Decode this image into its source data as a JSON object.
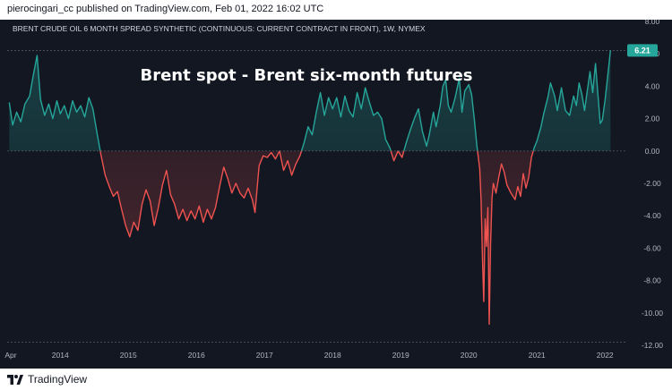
{
  "header": {
    "published_text": "pierocingari_cc published on TradingView.com, Feb 01, 2022 16:02 UTC"
  },
  "footer": {
    "brand_icon": "tradingview-logo-icon",
    "brand_label": "TradingView"
  },
  "colors": {
    "background": "#131722",
    "positive_line": "#26a69a",
    "negative_line": "#ef5350",
    "text": "#b2b5be",
    "price_badge": "#26a69a"
  },
  "chart_data": {
    "type": "line",
    "symbol_title": "BRENT CRUDE OIL 6 MONTH SPREAD SYNTHETIC (CONTINUOUS: CURRENT CONTRACT IN FRONT), 1W, NYMEX",
    "annotation": "Brent spot - Brent six-month futures",
    "last_value_label": "6.21",
    "baseline": 0,
    "ylim": [
      -12,
      8
    ],
    "y_ticks": [
      "8.00",
      "6.00",
      "4.00",
      "2.00",
      "0.00",
      "-2.00",
      "-4.00",
      "-6.00",
      "-8.00",
      "-10.00",
      "-12.00"
    ],
    "x_ticks": [
      {
        "label": "Apr",
        "t": 2013.25
      },
      {
        "label": "2014",
        "t": 2014.0
      },
      {
        "label": "2015",
        "t": 2015.0
      },
      {
        "label": "2016",
        "t": 2016.0
      },
      {
        "label": "2017",
        "t": 2017.0
      },
      {
        "label": "2018",
        "t": 2018.0
      },
      {
        "label": "2019",
        "t": 2019.0
      },
      {
        "label": "2020",
        "t": 2020.0
      },
      {
        "label": "2021",
        "t": 2021.0
      },
      {
        "label": "2022",
        "t": 2022.0
      }
    ],
    "x_range": [
      2013.22,
      2022.3
    ],
    "series": [
      {
        "values": [
          [
            2013.25,
            3.0
          ],
          [
            2013.3,
            1.6
          ],
          [
            2013.36,
            2.4
          ],
          [
            2013.42,
            1.8
          ],
          [
            2013.48,
            2.9
          ],
          [
            2013.55,
            3.4
          ],
          [
            2013.6,
            4.6
          ],
          [
            2013.66,
            5.9
          ],
          [
            2013.71,
            3.2
          ],
          [
            2013.77,
            2.2
          ],
          [
            2013.83,
            2.9
          ],
          [
            2013.89,
            2.0
          ],
          [
            2013.95,
            3.1
          ],
          [
            2014.0,
            2.3
          ],
          [
            2014.06,
            2.8
          ],
          [
            2014.12,
            2.0
          ],
          [
            2014.18,
            3.1
          ],
          [
            2014.24,
            2.4
          ],
          [
            2014.3,
            2.8
          ],
          [
            2014.36,
            2.1
          ],
          [
            2014.42,
            3.3
          ],
          [
            2014.48,
            2.6
          ],
          [
            2014.54,
            1.1
          ],
          [
            2014.6,
            -0.3
          ],
          [
            2014.66,
            -1.5
          ],
          [
            2014.72,
            -2.2
          ],
          [
            2014.78,
            -2.8
          ],
          [
            2014.84,
            -2.5
          ],
          [
            2014.9,
            -3.6
          ],
          [
            2014.96,
            -4.6
          ],
          [
            2015.02,
            -5.3
          ],
          [
            2015.08,
            -4.4
          ],
          [
            2015.14,
            -4.9
          ],
          [
            2015.2,
            -3.3
          ],
          [
            2015.26,
            -2.4
          ],
          [
            2015.32,
            -3.1
          ],
          [
            2015.38,
            -4.6
          ],
          [
            2015.44,
            -3.5
          ],
          [
            2015.5,
            -2.1
          ],
          [
            2015.56,
            -1.2
          ],
          [
            2015.62,
            -2.7
          ],
          [
            2015.68,
            -3.3
          ],
          [
            2015.74,
            -4.2
          ],
          [
            2015.8,
            -3.6
          ],
          [
            2015.86,
            -4.3
          ],
          [
            2015.92,
            -3.7
          ],
          [
            2015.98,
            -4.2
          ],
          [
            2016.04,
            -3.4
          ],
          [
            2016.1,
            -4.4
          ],
          [
            2016.16,
            -3.6
          ],
          [
            2016.22,
            -4.2
          ],
          [
            2016.28,
            -3.5
          ],
          [
            2016.34,
            -2.2
          ],
          [
            2016.4,
            -1.0
          ],
          [
            2016.46,
            -1.7
          ],
          [
            2016.52,
            -2.6
          ],
          [
            2016.58,
            -2.0
          ],
          [
            2016.64,
            -2.6
          ],
          [
            2016.7,
            -2.9
          ],
          [
            2016.76,
            -2.3
          ],
          [
            2016.82,
            -3.0
          ],
          [
            2016.86,
            -3.8
          ],
          [
            2016.92,
            -0.9
          ],
          [
            2016.98,
            -0.3
          ],
          [
            2017.04,
            -0.4
          ],
          [
            2017.1,
            -0.1
          ],
          [
            2017.16,
            -0.5
          ],
          [
            2017.22,
            0.0
          ],
          [
            2017.28,
            -1.2
          ],
          [
            2017.34,
            -0.6
          ],
          [
            2017.4,
            -1.5
          ],
          [
            2017.46,
            -0.8
          ],
          [
            2017.52,
            -0.3
          ],
          [
            2017.58,
            0.5
          ],
          [
            2017.64,
            1.5
          ],
          [
            2017.7,
            1.0
          ],
          [
            2017.76,
            2.4
          ],
          [
            2017.82,
            3.6
          ],
          [
            2017.88,
            2.2
          ],
          [
            2017.94,
            3.3
          ],
          [
            2018.0,
            2.6
          ],
          [
            2018.06,
            3.3
          ],
          [
            2018.12,
            2.1
          ],
          [
            2018.18,
            3.4
          ],
          [
            2018.24,
            2.5
          ],
          [
            2018.3,
            2.1
          ],
          [
            2018.36,
            3.6
          ],
          [
            2018.42,
            2.6
          ],
          [
            2018.48,
            3.9
          ],
          [
            2018.54,
            3.0
          ],
          [
            2018.6,
            2.2
          ],
          [
            2018.66,
            2.4
          ],
          [
            2018.72,
            2.0
          ],
          [
            2018.78,
            0.7
          ],
          [
            2018.84,
            0.2
          ],
          [
            2018.9,
            -0.6
          ],
          [
            2018.96,
            0.0
          ],
          [
            2019.02,
            -0.4
          ],
          [
            2019.08,
            0.5
          ],
          [
            2019.14,
            1.3
          ],
          [
            2019.2,
            2.0
          ],
          [
            2019.26,
            2.6
          ],
          [
            2019.32,
            1.2
          ],
          [
            2019.38,
            0.3
          ],
          [
            2019.42,
            1.0
          ],
          [
            2019.48,
            2.4
          ],
          [
            2019.52,
            1.5
          ],
          [
            2019.58,
            2.8
          ],
          [
            2019.62,
            4.0
          ],
          [
            2019.66,
            4.4
          ],
          [
            2019.7,
            2.8
          ],
          [
            2019.74,
            2.4
          ],
          [
            2019.8,
            3.3
          ],
          [
            2019.86,
            4.5
          ],
          [
            2019.9,
            2.4
          ],
          [
            2019.94,
            3.7
          ],
          [
            2020.0,
            4.1
          ],
          [
            2020.04,
            3.5
          ],
          [
            2020.08,
            2.0
          ],
          [
            2020.12,
            0.3
          ],
          [
            2020.16,
            -1.1
          ],
          [
            2020.18,
            -3.0
          ],
          [
            2020.2,
            -6.5
          ],
          [
            2020.22,
            -9.3
          ],
          [
            2020.24,
            -4.2
          ],
          [
            2020.26,
            -5.9
          ],
          [
            2020.28,
            -3.5
          ],
          [
            2020.3,
            -10.7
          ],
          [
            2020.32,
            -5.8
          ],
          [
            2020.34,
            -2.9
          ],
          [
            2020.36,
            -2.0
          ],
          [
            2020.4,
            -2.6
          ],
          [
            2020.44,
            -1.6
          ],
          [
            2020.48,
            -0.8
          ],
          [
            2020.52,
            -1.3
          ],
          [
            2020.56,
            -2.1
          ],
          [
            2020.62,
            -2.6
          ],
          [
            2020.68,
            -3.0
          ],
          [
            2020.72,
            -2.2
          ],
          [
            2020.76,
            -2.8
          ],
          [
            2020.8,
            -1.4
          ],
          [
            2020.84,
            -2.3
          ],
          [
            2020.88,
            -1.6
          ],
          [
            2020.92,
            -0.4
          ],
          [
            2020.96,
            0.2
          ],
          [
            2021.0,
            0.6
          ],
          [
            2021.06,
            1.5
          ],
          [
            2021.1,
            2.3
          ],
          [
            2021.16,
            3.3
          ],
          [
            2021.2,
            4.2
          ],
          [
            2021.26,
            3.4
          ],
          [
            2021.3,
            2.5
          ],
          [
            2021.36,
            3.9
          ],
          [
            2021.42,
            2.5
          ],
          [
            2021.48,
            2.2
          ],
          [
            2021.54,
            3.4
          ],
          [
            2021.58,
            2.8
          ],
          [
            2021.62,
            4.2
          ],
          [
            2021.66,
            3.5
          ],
          [
            2021.7,
            2.5
          ],
          [
            2021.74,
            3.7
          ],
          [
            2021.78,
            4.9
          ],
          [
            2021.82,
            3.6
          ],
          [
            2021.86,
            5.4
          ],
          [
            2021.9,
            3.3
          ],
          [
            2021.93,
            1.7
          ],
          [
            2021.96,
            1.9
          ],
          [
            2022.0,
            3.1
          ],
          [
            2022.04,
            4.6
          ],
          [
            2022.08,
            6.21
          ]
        ]
      }
    ]
  }
}
